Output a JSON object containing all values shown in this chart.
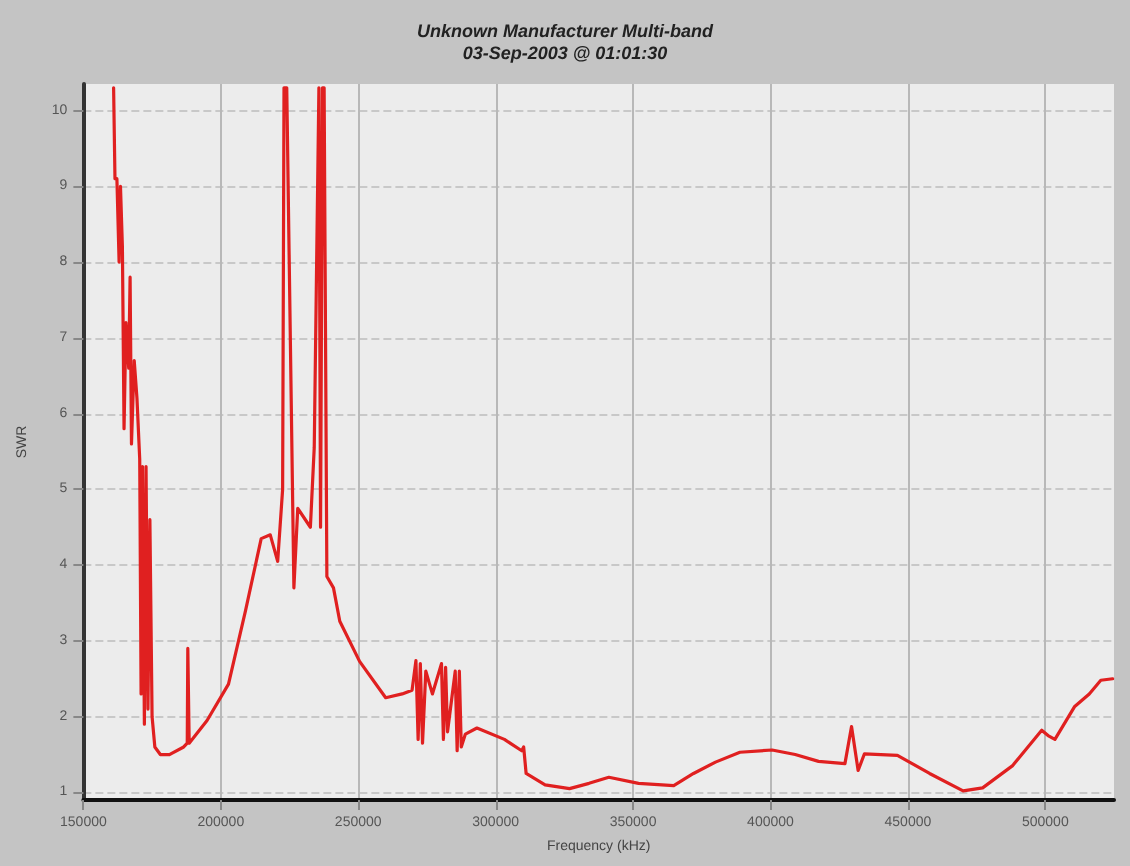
{
  "chart_data": {
    "type": "line",
    "title": "Unknown Manufacturer Multi-band",
    "subtitle": "03-Sep-2003 @ 01:01:30",
    "xlabel": "Frequency (kHz)",
    "ylabel": "SWR",
    "xlim": [
      150000,
      525000
    ],
    "xticks": [
      150000,
      200000,
      250000,
      300000,
      350000,
      400000,
      450000,
      500000
    ],
    "ylim": [
      0.9,
      10.35
    ],
    "yticks": [
      1,
      2,
      3,
      4,
      5,
      6,
      7,
      8,
      9,
      10
    ],
    "grid": true,
    "marker": "none",
    "line_style": "solid",
    "series": [
      {
        "color": "#e02020",
        "x": [
          161000,
          161500,
          162200,
          163000,
          163500,
          164200,
          164800,
          165500,
          166500,
          167000,
          167500,
          168500,
          169500,
          170500,
          171000,
          171500,
          172200,
          172800,
          173500,
          174200,
          175000,
          176000,
          178000,
          181300,
          186500,
          187800,
          188000,
          188500,
          195000,
          202800,
          209000,
          214700,
          218000,
          220700,
          222500,
          223000,
          224000,
          226600,
          228000,
          232600,
          234000,
          235700,
          236300,
          237000,
          237600,
          238600,
          241000,
          243300,
          250500,
          260000,
          266000,
          269600,
          271000,
          271800,
          272600,
          273400,
          274600,
          277000,
          280300,
          281000,
          281800,
          282500,
          285300,
          286000,
          286800,
          287500,
          289000,
          293200,
          303200,
          309500,
          310200,
          311100,
          318000,
          326900,
          334000,
          341200,
          352000,
          364800,
          372000,
          380000,
          388900,
          400600,
          409000,
          417500,
          427100,
          429500,
          431900,
          434200,
          446200,
          457900,
          470100,
          477200,
          488000,
          498700,
          501000,
          503500,
          510600,
          516000,
          520200,
          524500
        ],
        "values": [
          10.3,
          9.1,
          9.1,
          8.0,
          9.0,
          8.2,
          5.8,
          7.2,
          6.6,
          7.8,
          5.6,
          6.7,
          6.2,
          5.4,
          2.3,
          5.3,
          1.9,
          5.3,
          2.1,
          4.6,
          2.0,
          1.6,
          1.5,
          1.5,
          1.6,
          1.65,
          2.9,
          1.65,
          1.95,
          2.43,
          3.4,
          4.35,
          4.4,
          4.05,
          5.0,
          10.3,
          10.3,
          3.7,
          4.75,
          4.5,
          5.55,
          10.3,
          4.5,
          10.3,
          10.3,
          3.85,
          3.7,
          3.26,
          2.73,
          2.25,
          2.3,
          2.35,
          2.74,
          1.7,
          2.7,
          1.65,
          2.6,
          2.3,
          2.7,
          1.7,
          2.65,
          1.8,
          2.6,
          1.55,
          2.6,
          1.6,
          1.77,
          1.85,
          1.7,
          1.55,
          1.6,
          1.25,
          1.1,
          1.05,
          1.12,
          1.2,
          1.12,
          1.09,
          1.25,
          1.4,
          1.53,
          1.56,
          1.5,
          1.41,
          1.38,
          1.87,
          1.29,
          1.51,
          1.49,
          1.25,
          1.02,
          1.06,
          1.35,
          1.82,
          1.75,
          1.7,
          2.13,
          2.3,
          2.48,
          2.5
        ]
      }
    ]
  }
}
